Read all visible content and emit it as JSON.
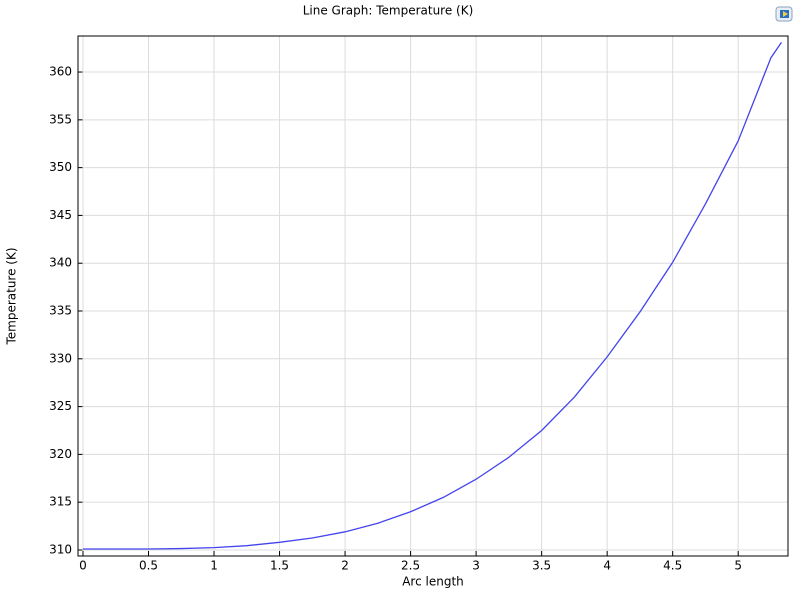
{
  "chart_data": {
    "type": "line",
    "title": "Line Graph: Temperature (K)",
    "x_label": "Arc length",
    "y_label": "Temperature (K)",
    "x": [
      0,
      0.25,
      0.5,
      0.75,
      1,
      1.25,
      1.5,
      1.75,
      2,
      2.25,
      2.5,
      2.75,
      3,
      3.25,
      3.5,
      3.75,
      4,
      4.25,
      4.5,
      4.75,
      5,
      5.25,
      5.33
    ],
    "series": [
      {
        "name": "Temperature",
        "color": "#4444ee",
        "values": [
          310.1,
          310.1,
          310.1,
          310.15,
          310.25,
          310.45,
          310.8,
          311.25,
          311.9,
          312.8,
          314.0,
          315.5,
          317.4,
          319.7,
          322.5,
          326.0,
          330.2,
          334.9,
          340.1,
          346.2,
          352.8,
          361.5,
          363.1
        ]
      }
    ],
    "xlim": [
      -0.038,
      5.38
    ],
    "ylim": [
      309.37,
      363.77
    ],
    "xticks": [
      0,
      0.5,
      1,
      1.5,
      2,
      2.5,
      3,
      3.5,
      4,
      4.5,
      5
    ],
    "yticks": [
      310,
      315,
      320,
      325,
      330,
      335,
      340,
      345,
      350,
      355,
      360
    ],
    "grid": true
  }
}
